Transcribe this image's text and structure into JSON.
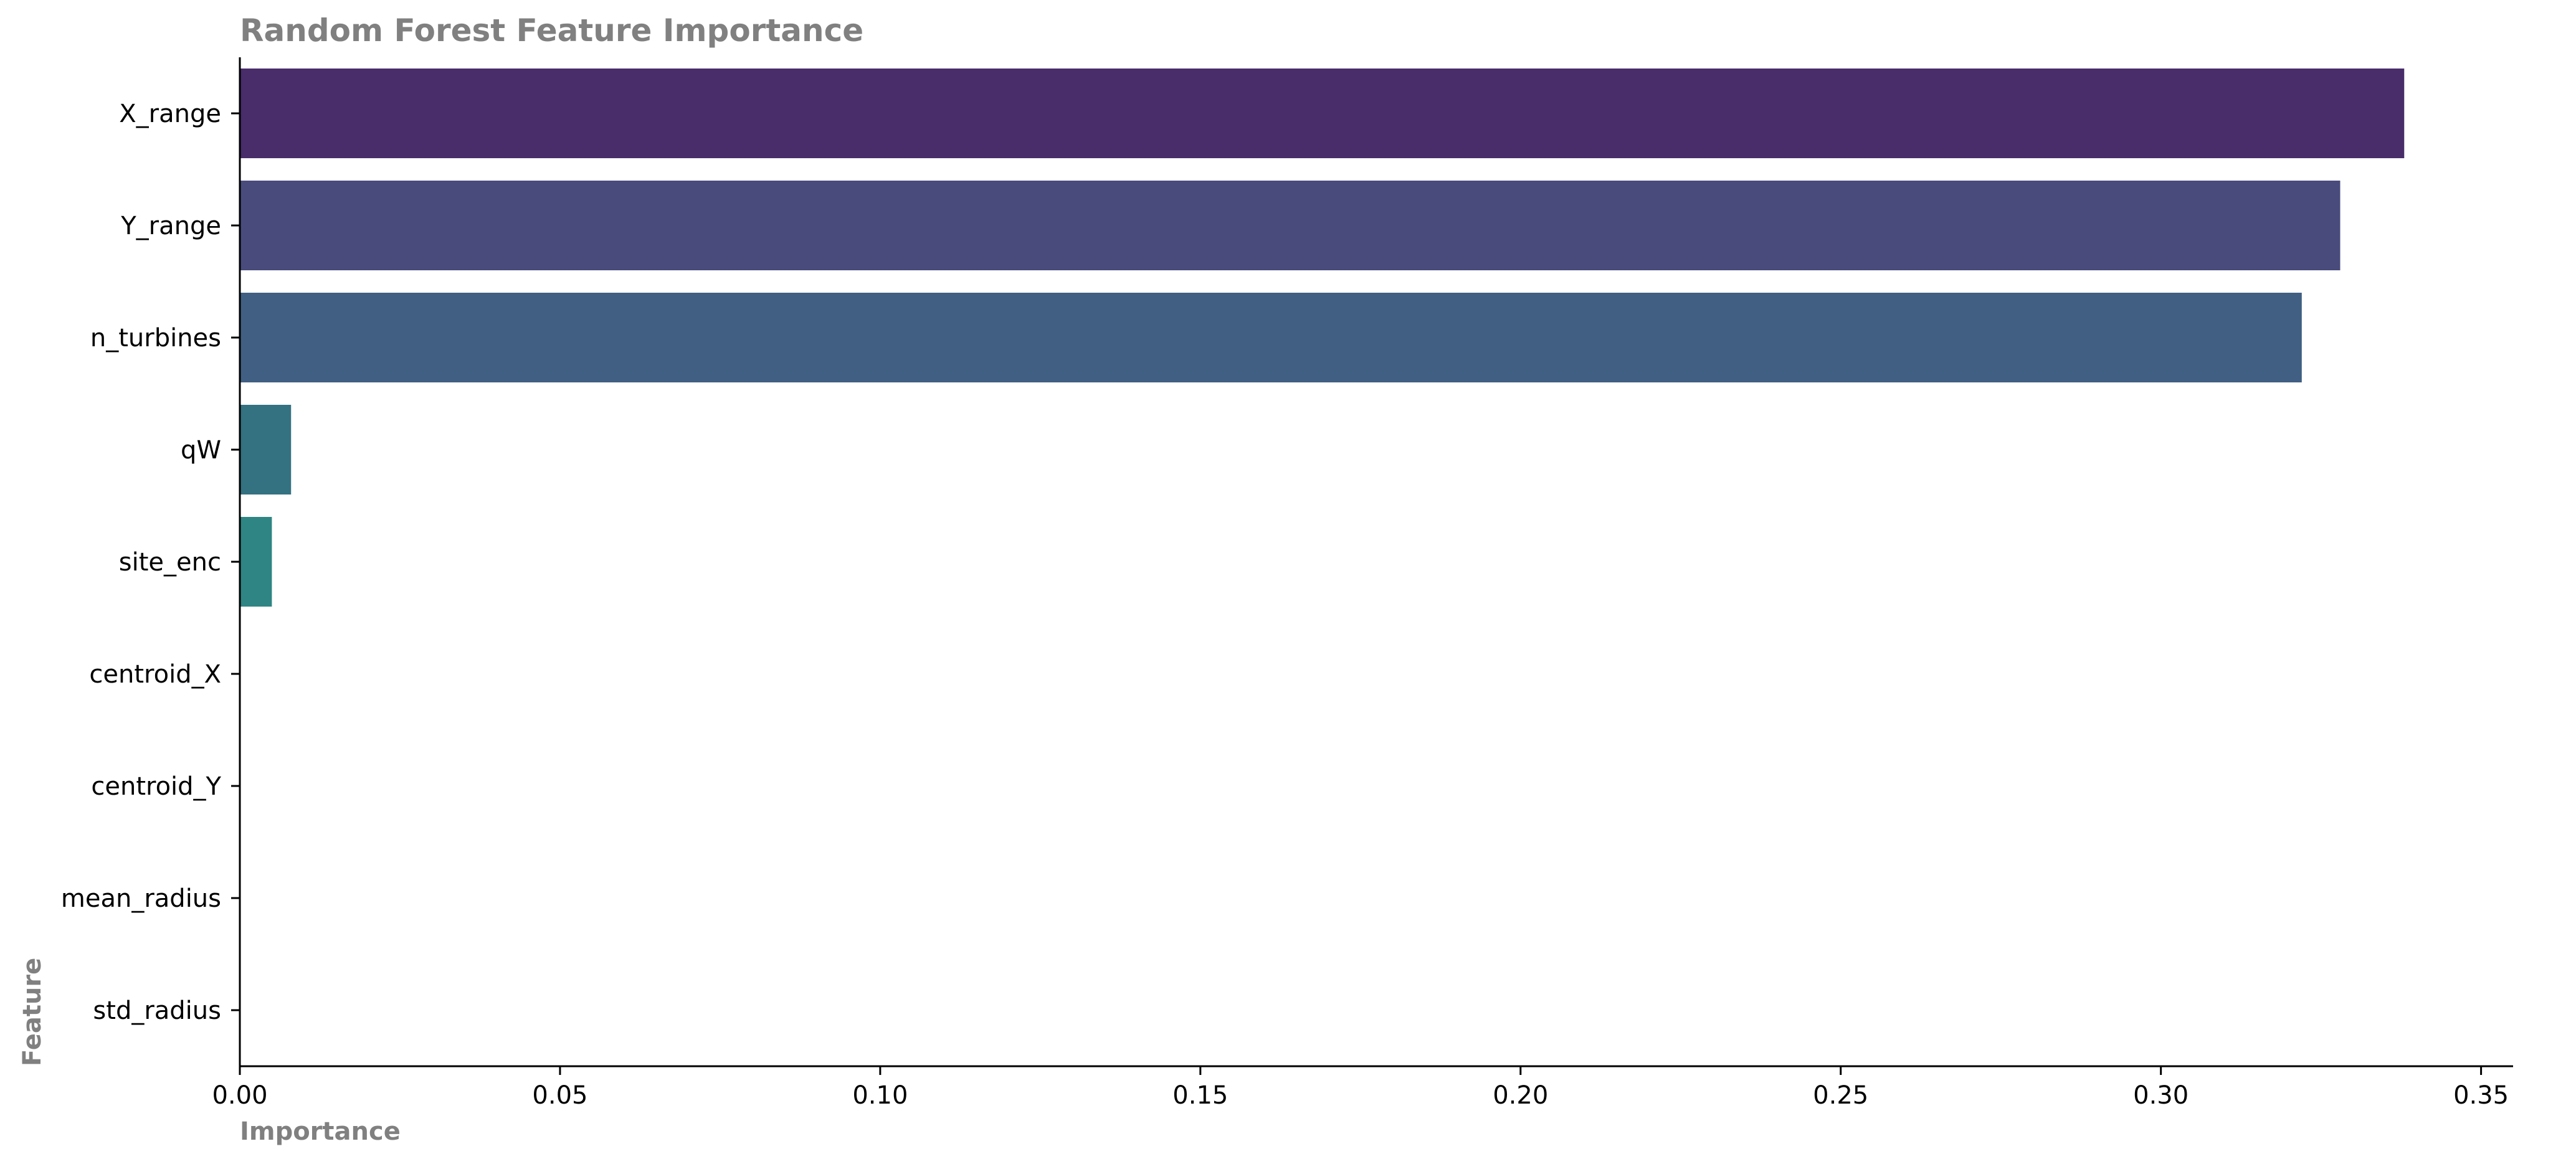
{
  "chart_data": {
    "type": "bar",
    "orientation": "horizontal",
    "title": "Random Forest Feature Importance",
    "xlabel": "Importance",
    "ylabel": "Feature",
    "categories": [
      "X_range",
      "Y_range",
      "n_turbines",
      "qW",
      "site_enc",
      "centroid_X",
      "centroid_Y",
      "mean_radius",
      "std_radius"
    ],
    "values": [
      0.338,
      0.328,
      0.322,
      0.008,
      0.005,
      0.0,
      0.0,
      0.0,
      0.0
    ],
    "colors": [
      "#482d6a",
      "#494b7d",
      "#405f82",
      "#347181",
      "#2f8583",
      "#2a9282",
      "#35a67b",
      "#5dbb6b",
      "#94cf56"
    ],
    "xlim": [
      0,
      0.355
    ],
    "xticks": [
      0.0,
      0.05,
      0.1,
      0.15,
      0.2,
      0.25,
      0.3,
      0.35
    ],
    "xtick_labels": [
      "0.00",
      "0.05",
      "0.10",
      "0.15",
      "0.20",
      "0.25",
      "0.30",
      "0.35"
    ],
    "grid": false,
    "legend": "none"
  }
}
